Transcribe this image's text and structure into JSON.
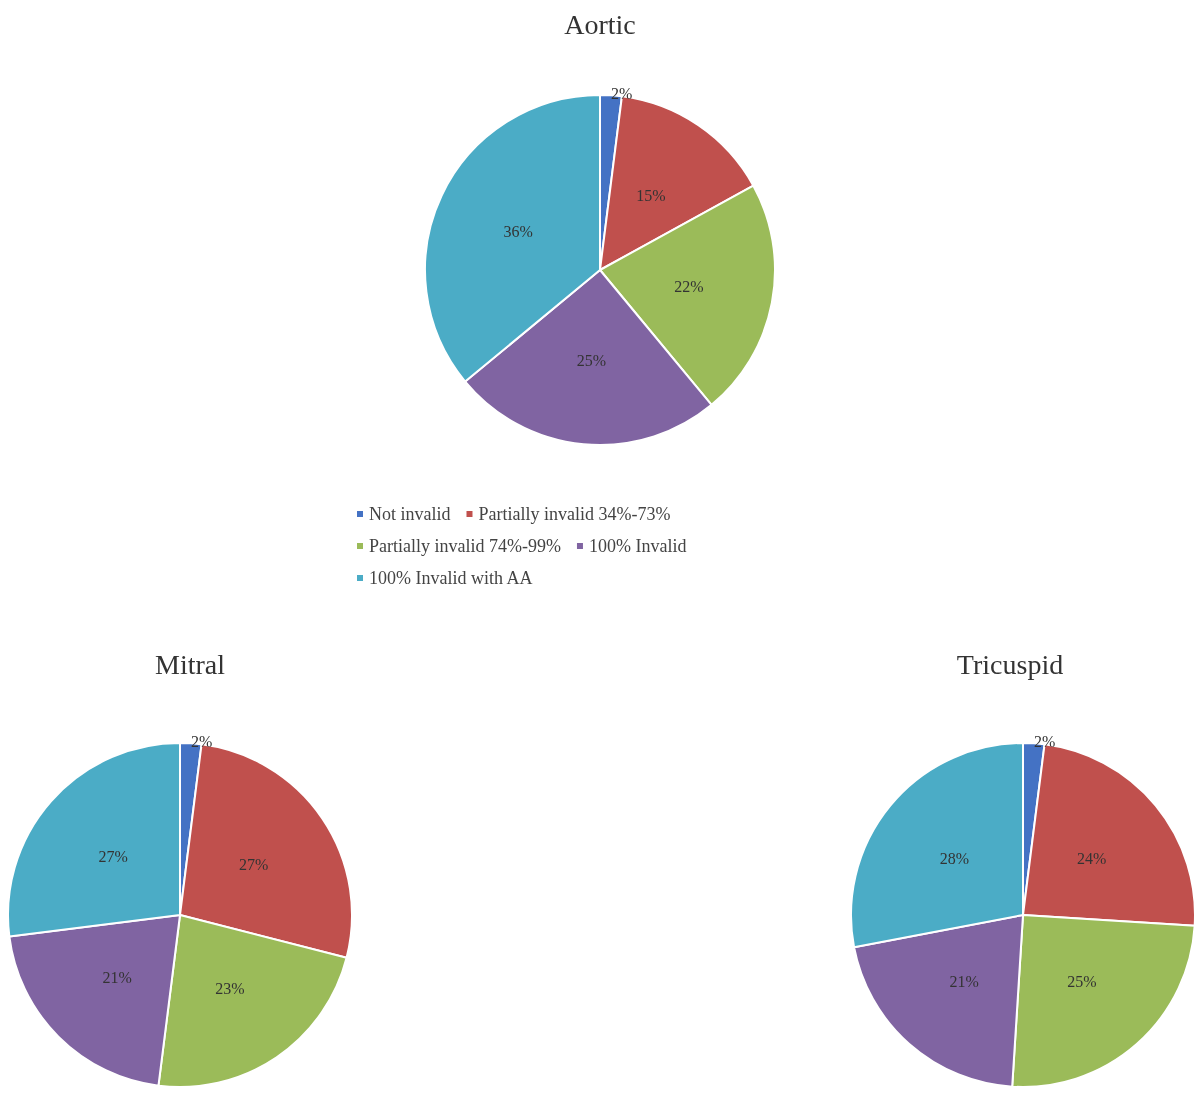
{
  "chart_data": [
    {
      "type": "pie",
      "title": "Aortic",
      "categories": [
        "Not invalid",
        "Partially invalid 34%-73%",
        "Partially invalid 74%-99%",
        "100% Invalid",
        "100% Invalid with AA"
      ],
      "values": [
        2,
        15,
        22,
        25,
        36
      ],
      "value_labels": [
        "2%",
        "15%",
        "22%",
        "25%",
        "36%"
      ],
      "colors": [
        "#4472c4",
        "#c0504d",
        "#9bbb59",
        "#8064a2",
        "#4bacc6"
      ],
      "legend": "bottom"
    },
    {
      "type": "pie",
      "title": "Mitral",
      "categories": [
        null,
        null,
        null,
        null,
        null
      ],
      "values": [
        2,
        27,
        23,
        21,
        27
      ],
      "value_labels": [
        "2%",
        "27%",
        "23%",
        "21%",
        "27%"
      ],
      "colors": [
        "#4472c4",
        "#c0504d",
        "#9bbb59",
        "#8064a2",
        "#4bacc6"
      ]
    },
    {
      "type": "pie",
      "title": "Tricuspid",
      "categories": [
        null,
        null,
        null,
        null,
        null
      ],
      "values": [
        2,
        24,
        25,
        21,
        28
      ],
      "value_labels": [
        "2%",
        "24%",
        "25%",
        "21%",
        "28%"
      ],
      "colors": [
        "#4472c4",
        "#c0504d",
        "#9bbb59",
        "#8064a2",
        "#4bacc6"
      ]
    }
  ]
}
